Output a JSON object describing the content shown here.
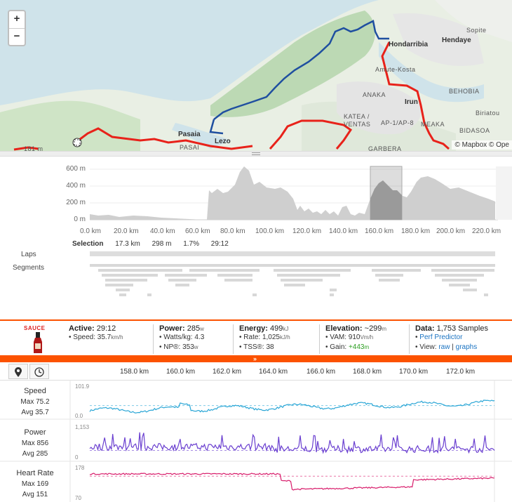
{
  "map": {
    "zoom_in": "+",
    "zoom_out": "−",
    "attribution": "© Mapbox © Ope",
    "labels": {
      "hondarribia": "Hondarribia",
      "hendaye": "Hendaye",
      "sopite": "Sopite",
      "amute": "Amute-Kosta",
      "anaka": "ANAKA",
      "behobia": "BEHOBIA",
      "irun": "Irun",
      "biriatou": "Biriatou",
      "katea": "KATEA /",
      "ventas": "VENTAS",
      "ap": "AP-1/AP-8",
      "meaka": "MEAKA",
      "bidasoa": "BIDASOA",
      "pasaia": "Pasaia",
      "lezo": "Lezo",
      "pasai": "PASAI",
      "garbera": "GARBERA",
      "peak": "181 m"
    },
    "colors": {
      "route": "#e8221a",
      "selection": "#1f4fa0",
      "water": "#cfe3ea",
      "land": "#e7efe0"
    }
  },
  "elevation": {
    "y_ticks": [
      "600 m",
      "400 m",
      "200 m",
      "0 m"
    ],
    "x_ticks": [
      "0.0 km",
      "20.0 km",
      "40.0 km",
      "60.0 km",
      "80.0 km",
      "100.0 km",
      "120.0 km",
      "140.0 km",
      "160.0 km",
      "180.0 km",
      "200.0 km",
      "220.0 km"
    ],
    "selection": {
      "label": "Selection",
      "distance": "17.3 km",
      "climb": "298 m",
      "grade": "1.7%",
      "time": "29:12"
    },
    "laps_label": "Laps",
    "segments_label": "Segments"
  },
  "stats": {
    "logo_text": "SAUCE",
    "active": {
      "label": "Active:",
      "value": "29:12",
      "speed_label": "Speed:",
      "speed": "35.7",
      "speed_unit": "km/h"
    },
    "power": {
      "label": "Power:",
      "value": "285",
      "unit": "w",
      "wkg_label": "Watts/kg:",
      "wkg": "4.3",
      "np_label": "NP®:",
      "np": "353",
      "np_unit": "w"
    },
    "energy": {
      "label": "Energy:",
      "value": "499",
      "unit": "kJ",
      "rate_label": "Rate:",
      "rate": "1,025",
      "rate_unit": "kJ/h",
      "tss_label": "TSS®:",
      "tss": "38"
    },
    "elevation": {
      "label": "Elevation:",
      "value": "~299",
      "unit": "m",
      "vam_label": "VAM:",
      "vam": "910",
      "vam_unit": "Vm/h",
      "gain_label": "Gain:",
      "gain": "+443",
      "gain_unit": "m"
    },
    "data": {
      "label": "Data:",
      "value": "1,753 Samples",
      "perf": "Perf Predictor",
      "view_label": "View:",
      "raw": "raw",
      "sep": "|",
      "graphs": "graphs"
    }
  },
  "time_axis": {
    "ticks": [
      "158.0 km",
      "160.0 km",
      "162.0 km",
      "164.0 km",
      "166.0 km",
      "168.0 km",
      "170.0 km",
      "172.0 km"
    ]
  },
  "streams": [
    {
      "name": "Speed",
      "max_label": "Max 75.2",
      "avg_label": "Avg 35.7",
      "top": "101.9",
      "bottom": "0.0",
      "color": "#2aa6d6"
    },
    {
      "name": "Power",
      "max_label": "Max 856",
      "avg_label": "Avg 285",
      "top": "1,153",
      "bottom": "0",
      "color": "#6a3fd0"
    },
    {
      "name": "Heart Rate",
      "max_label": "Max 169",
      "avg_label": "Avg 151",
      "top": "178",
      "bottom": "70",
      "color": "#d81b6a"
    }
  ]
}
